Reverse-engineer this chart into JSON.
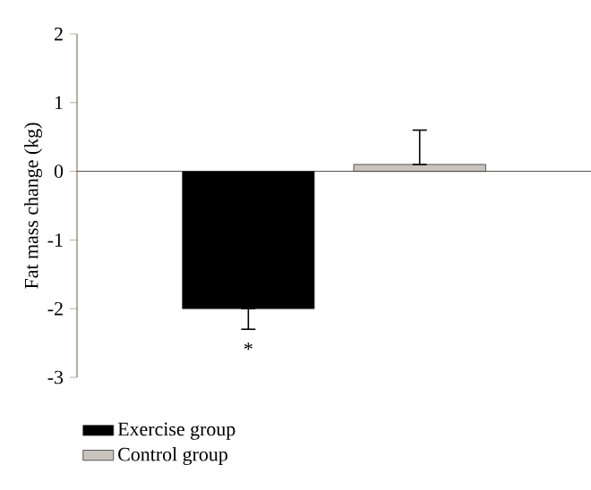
{
  "chart_data": {
    "type": "bar",
    "ylabel": "Fat mass change (kg)",
    "categories": [
      null,
      null
    ],
    "series": [
      {
        "name": "Exercise group",
        "color": "#000000",
        "values": [
          -2.0,
          null
        ],
        "errors": [
          [
            -2.3,
            -2.0
          ],
          null
        ]
      },
      {
        "name": "Control group",
        "color": "#c9c4bb",
        "values": [
          null,
          0.1
        ],
        "errors": [
          null,
          [
            0.1,
            0.6
          ]
        ]
      }
    ],
    "ylim": [
      -3,
      2
    ],
    "yticks": [
      -3,
      -2,
      -1,
      0,
      1,
      2
    ],
    "legend": "bottom left",
    "tick_labels": "y",
    "annotations": [
      "*"
    ]
  }
}
